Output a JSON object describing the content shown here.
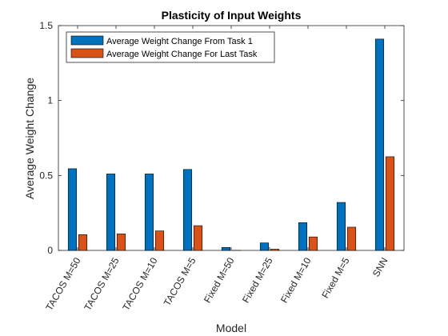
{
  "chart_data": {
    "type": "bar",
    "title": "Plasticity of Input Weights",
    "xlabel": "Model",
    "ylabel": "Average Weight Change",
    "ylim": [
      0,
      1.5
    ],
    "yticks": [
      0,
      0.5,
      1,
      1.5
    ],
    "ytick_labels": [
      "0",
      "0.5",
      "1",
      "1.5"
    ],
    "categories": [
      "TACOS M=50",
      "TACOS M=25",
      "TACOS M=10",
      "TACOS M=5",
      "Fixed M=50",
      "Fixed M=25",
      "Fixed M=10",
      "Fixed M=5",
      "SNN"
    ],
    "series": [
      {
        "name": "Average Weight Change From Task 1",
        "color": "#0072BD",
        "values": [
          0.545,
          0.51,
          0.51,
          0.54,
          0.02,
          0.05,
          0.185,
          0.32,
          1.41
        ]
      },
      {
        "name": "Average Weight Change For Last Task",
        "color": "#D95319",
        "values": [
          0.105,
          0.11,
          0.13,
          0.165,
          0.0,
          0.008,
          0.09,
          0.155,
          0.625
        ]
      }
    ],
    "legend": "top-left",
    "grid": false
  }
}
